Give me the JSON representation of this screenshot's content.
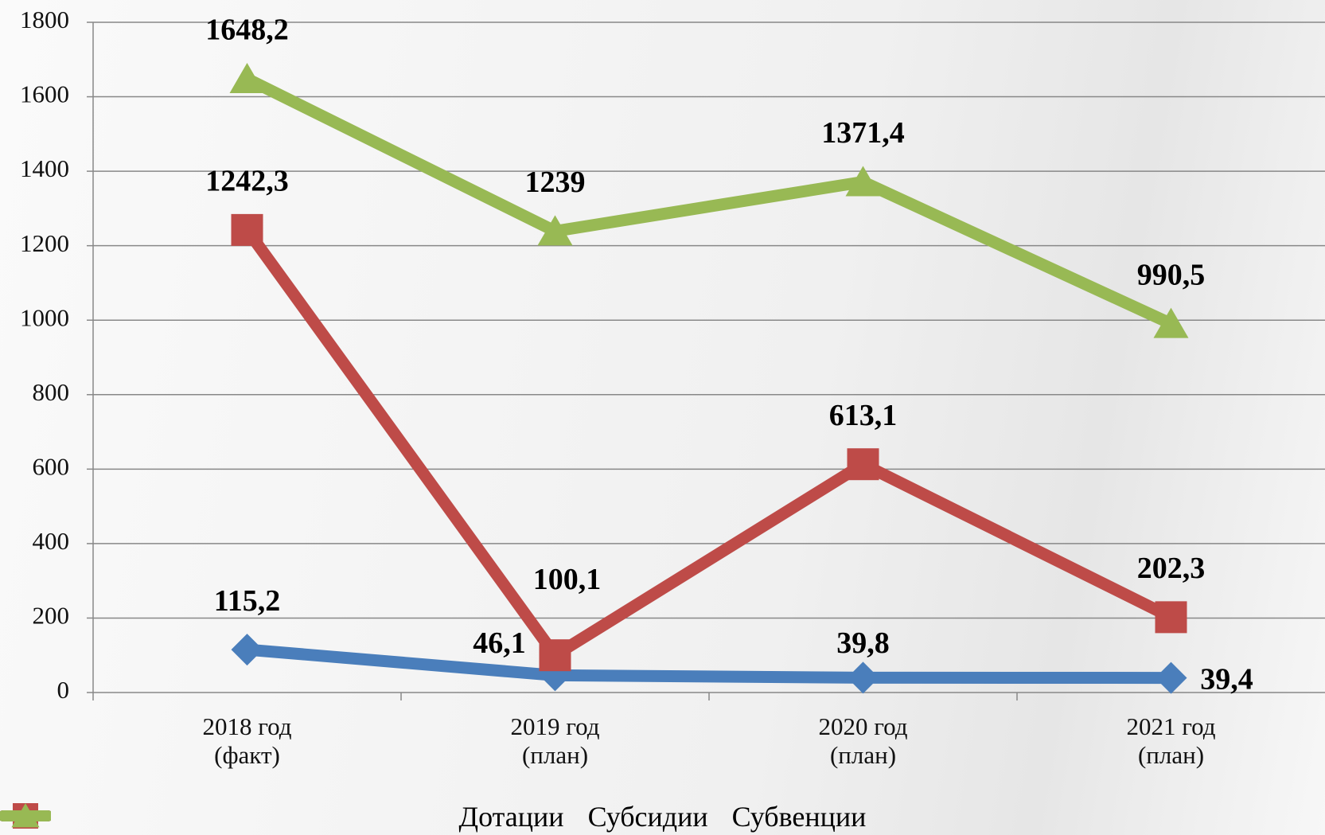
{
  "chart_data": {
    "type": "line",
    "categories": [
      "2018 год (факт)",
      "2019 год (план)",
      "2020 год (план)",
      "2021 год (план)"
    ],
    "series": [
      {
        "name": "Дотации",
        "color": "#4a7ebb",
        "marker": "diamond",
        "values": [
          115.2,
          46.1,
          39.8,
          39.4
        ],
        "value_labels": [
          "115,2",
          "46,1",
          "39,8",
          "39,4"
        ]
      },
      {
        "name": "Субсидии",
        "color": "#be4b48",
        "marker": "square",
        "values": [
          1242.3,
          100.1,
          613.1,
          202.3
        ],
        "value_labels": [
          "1242,3",
          "100,1",
          "613,1",
          "202,3"
        ]
      },
      {
        "name": "Субвенции",
        "color": "#98b954",
        "marker": "triangle",
        "values": [
          1648.2,
          1239,
          1371.4,
          990.5
        ],
        "value_labels": [
          "1648,2",
          "1239",
          "1371,4",
          "990,5"
        ]
      }
    ],
    "ylim": [
      0,
      1800
    ],
    "yticks": [
      0,
      200,
      400,
      600,
      800,
      1000,
      1200,
      1400,
      1600,
      1800
    ],
    "grid": true,
    "legend": "bottom"
  }
}
